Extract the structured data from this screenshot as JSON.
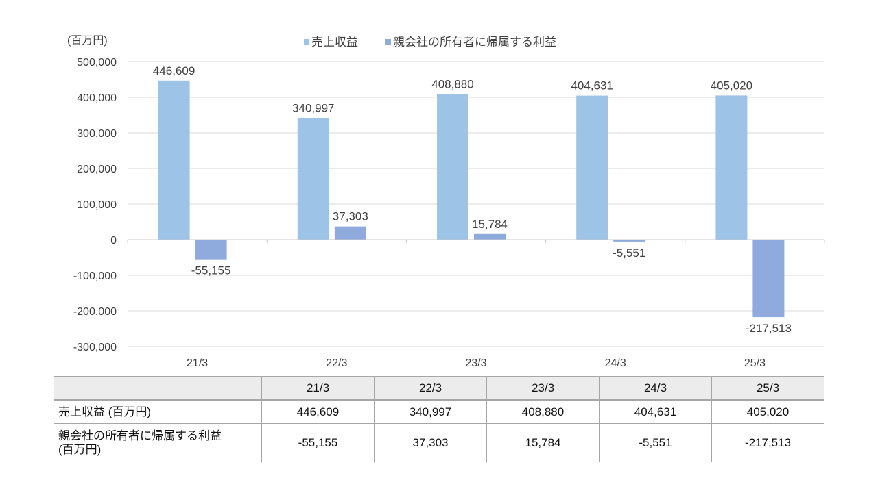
{
  "chart_data": {
    "type": "bar",
    "unit_label": "(百万円)",
    "categories": [
      "21/3",
      "22/3",
      "23/3",
      "24/3",
      "25/3"
    ],
    "series": [
      {
        "name": "売上収益",
        "values": [
          446609,
          340997,
          408880,
          404631,
          405020
        ],
        "color": "#9dc3e6"
      },
      {
        "name": "親会社の所有者に帰属する利益",
        "values": [
          -55155,
          37303,
          15784,
          -5551,
          -217513
        ],
        "color": "#8faadc"
      }
    ],
    "data_labels": [
      [
        "446,609",
        "340,997",
        "408,880",
        "404,631",
        "405,020"
      ],
      [
        "-55,155",
        "37,303",
        "15,784",
        "-5,551",
        "-217,513"
      ]
    ],
    "ylim": [
      -300000,
      500000
    ],
    "yticks": [
      500000,
      400000,
      300000,
      200000,
      100000,
      0,
      -100000,
      -200000,
      -300000
    ],
    "ytick_labels": [
      "500,000",
      "400,000",
      "300,000",
      "200,000",
      "100,000",
      "0",
      "-100,000",
      "-200,000",
      "-300,000"
    ],
    "grid": true,
    "legend_position": "top"
  },
  "table": {
    "headers": [
      "",
      "21/3",
      "22/3",
      "23/3",
      "24/3",
      "25/3"
    ],
    "rows": [
      {
        "label": "売上収益 (百万円)",
        "values": [
          "446,609",
          "340,997",
          "408,880",
          "404,631",
          "405,020"
        ]
      },
      {
        "label": "親会社の所有者に帰属する利益\n(百万円)",
        "values": [
          "-55,155",
          "37,303",
          "15,784",
          "-5,551",
          "-217,513"
        ]
      }
    ]
  }
}
